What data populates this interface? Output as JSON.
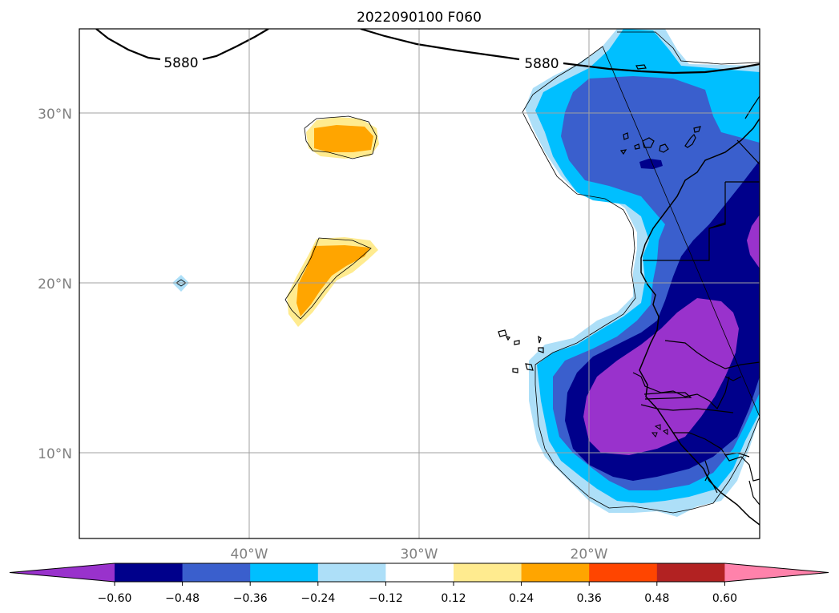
{
  "title": "2022090100 F060",
  "map": {
    "lat_range": [
      5,
      35
    ],
    "lon_range": [
      -50,
      -10
    ],
    "lat_labels": [
      {
        "value": 30,
        "text": "30°N"
      },
      {
        "value": 20,
        "text": "20°N"
      },
      {
        "value": 10,
        "text": "10°N"
      }
    ],
    "lon_labels": [
      {
        "value": -40,
        "text": "40°W"
      },
      {
        "value": -30,
        "text": "30°W"
      },
      {
        "value": -20,
        "text": "20°W"
      }
    ],
    "contour_labels": [
      "5880",
      "5880"
    ]
  },
  "colorbar": {
    "colors": [
      "#9932CC",
      "#00008B",
      "#3A5FCD",
      "#00BFFF",
      "#ADDFF8",
      "#FFFFFF",
      "#FFEB8F",
      "#FFA500",
      "#FF4500",
      "#B22222",
      "#FF82AB"
    ],
    "tick_labels": [
      "−0.60",
      "−0.48",
      "−0.36",
      "−0.24",
      "−0.12",
      "0.12",
      "0.24",
      "0.36",
      "0.48",
      "0.60"
    ]
  },
  "legend_colors": {
    "purple": "#9932CC",
    "navy": "#00008B",
    "royal": "#3A5FCD",
    "sky": "#00BFFF",
    "pale_blue": "#ADDFF8",
    "pale_yellow": "#FFEB8F",
    "orange": "#FFA500"
  }
}
